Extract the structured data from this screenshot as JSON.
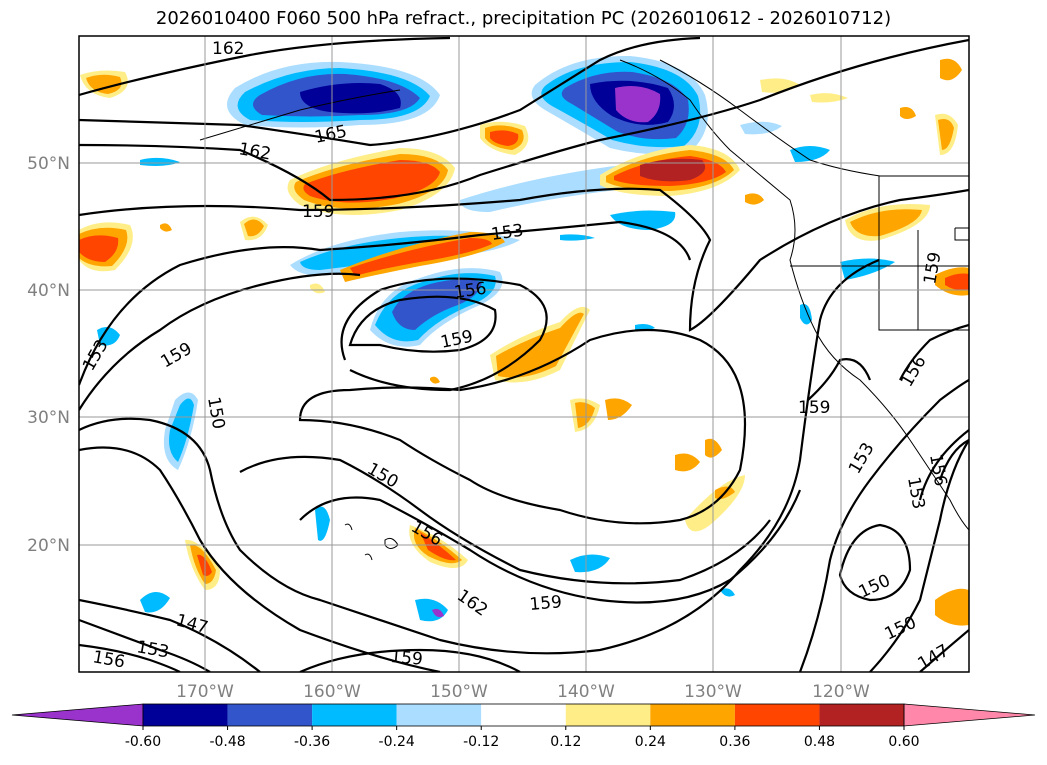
{
  "title": "2026010400 F060 500 hPa refract., precipitation PC (2026010612 - 2026010712)",
  "axes": {
    "lon_labels": [
      "170°W",
      "160°W",
      "150°W",
      "140°W",
      "130°W",
      "120°W"
    ],
    "lat_labels": [
      "50°N",
      "40°N",
      "30°N",
      "20°N"
    ]
  },
  "contour_labels": [
    "162",
    "165",
    "162",
    "159",
    "153",
    "156",
    "159",
    "159",
    "153",
    "150",
    "150",
    "156",
    "162",
    "159",
    "147",
    "153",
    "156",
    "159",
    "159",
    "159",
    "156",
    "153",
    "153",
    "156",
    "150",
    "150",
    "147"
  ],
  "colorbar": {
    "ticks": [
      "-0.60",
      "-0.48",
      "-0.36",
      "-0.24",
      "-0.12",
      "0.12",
      "0.24",
      "0.36",
      "0.48",
      "0.60"
    ],
    "colors": [
      "#9933cc",
      "#000099",
      "#3355cc",
      "#00bbff",
      "#aaddff",
      "#ffffff",
      "#ffee88",
      "#ffa500",
      "#ff4500",
      "#b22222",
      "#ff88aa"
    ]
  }
}
